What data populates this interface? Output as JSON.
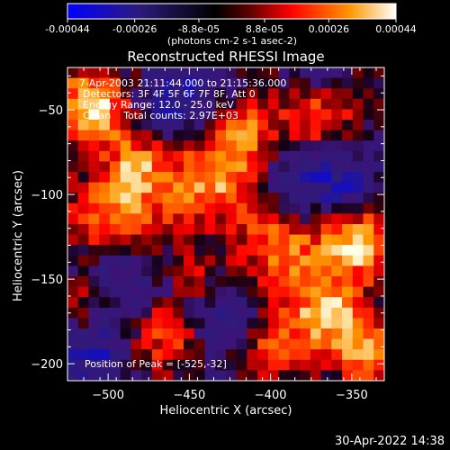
{
  "colorbar": {
    "tick_labels": [
      "-0.00044",
      "-0.00026",
      "-8.8e-05",
      "8.8e-05",
      "0.00026",
      "0.00044"
    ],
    "tick_values": [
      -0.00044,
      -0.00026,
      -8.8e-05,
      8.8e-05,
      0.00026,
      0.00044
    ],
    "range": [
      -0.00044,
      0.00044
    ],
    "unit_label": "(photons cm-2 s-1 asec-2)",
    "colors": [
      "#0000ff",
      "#2d1b7a",
      "#000000",
      "#7a0000",
      "#ff0000",
      "#ff9600",
      "#ffffff"
    ]
  },
  "chart_data": {
    "type": "heatmap",
    "title": "Reconstructed RHESSI Image",
    "xlabel": "Heliocentric X (arcsec)",
    "ylabel": "Heliocentric Y (arcsec)",
    "xlim": [
      -525,
      -330
    ],
    "ylim": [
      -210,
      -25
    ],
    "xticks": [
      -500,
      -450,
      -400,
      -350
    ],
    "yticks": [
      -200,
      -150,
      -100,
      -50
    ],
    "annotations": [
      "7-Apr-2003 21:11:44.000 to 21:15:36.000",
      "Detectors: 3F 4F 5F 6F 7F 8F, Att 0",
      "Energy Range: 12.0 - 25.0 keV",
      "Clean    Total counts: 2.97E+03"
    ],
    "peak_label": "Position of Peak = [-525,-32]",
    "peak_position": [
      -525,
      -32
    ],
    "grid_shape": [
      30,
      30
    ]
  },
  "footer": {
    "timestamp": "30-Apr-2022 14:38"
  }
}
